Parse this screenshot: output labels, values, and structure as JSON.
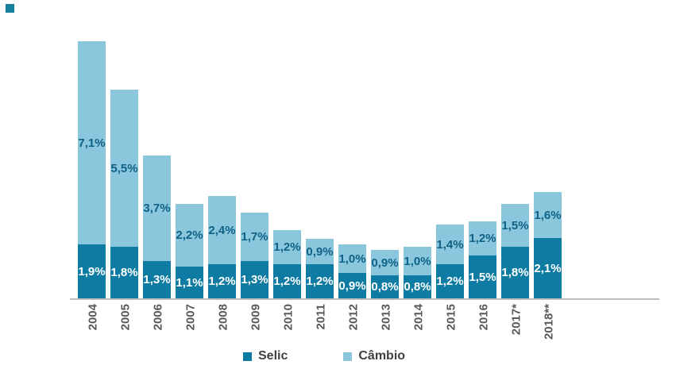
{
  "chart_data": {
    "type": "bar",
    "stacked": true,
    "title": "",
    "xlabel": "",
    "ylabel": "",
    "categories": [
      "2004",
      "2005",
      "2006",
      "2007",
      "2008",
      "2009",
      "2010",
      "2011",
      "2012",
      "2013",
      "2014",
      "2015",
      "2016",
      "2017*",
      "2018**"
    ],
    "series": [
      {
        "name": "Selic",
        "color": "#0e7ba3",
        "label_color": "#ffffff",
        "values": [
          1.9,
          1.8,
          1.3,
          1.1,
          1.2,
          1.3,
          1.2,
          1.2,
          0.9,
          0.8,
          0.8,
          1.2,
          1.5,
          1.8,
          2.1
        ],
        "labels": [
          "1,9%",
          "1,8%",
          "1,3%",
          "1,1%",
          "1,2%",
          "1,3%",
          "1,2%",
          "1,2%",
          "0,9%",
          "0,8%",
          "0,8%",
          "1,2%",
          "1,5%",
          "1,8%",
          "2,1%"
        ]
      },
      {
        "name": "Câmbio",
        "color": "#8bc7dc",
        "label_color": "#0e6187",
        "values": [
          7.1,
          5.5,
          3.7,
          2.2,
          2.4,
          1.7,
          1.2,
          0.9,
          1.0,
          0.9,
          1.0,
          1.4,
          1.2,
          1.5,
          1.6
        ],
        "labels": [
          "7,1%",
          "5,5%",
          "3,7%",
          "2,2%",
          "2,4%",
          "1,7%",
          "1,2%",
          "0,9%",
          "1,0%",
          "0,9%",
          "1,0%",
          "1,4%",
          "1,2%",
          "1,5%",
          "1,6%"
        ]
      }
    ],
    "legend": {
      "position": "bottom",
      "items": [
        {
          "label": "Selic",
          "color": "#0e7ba3"
        },
        {
          "label": "Câmbio",
          "color": "#8bc7dc"
        }
      ]
    },
    "ylim": [
      0,
      9.2
    ],
    "grid": false,
    "axis_line_color": "#bdbdbd",
    "category_label_color": "#595959",
    "legend_label_color": "#404040"
  },
  "decor": {
    "corner_square_color": "#17809c"
  }
}
